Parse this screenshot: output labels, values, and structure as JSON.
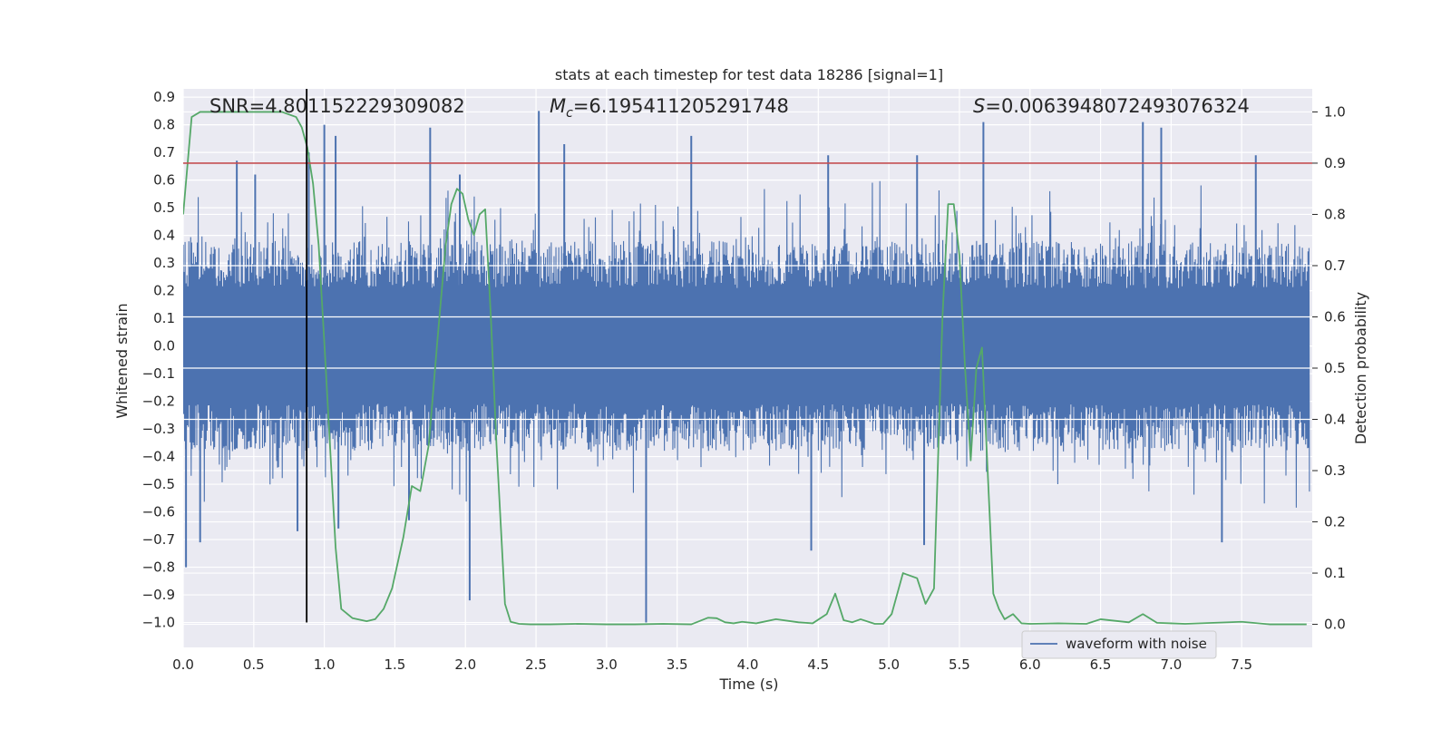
{
  "chart_data": {
    "type": "line",
    "title": "stats at each timestep for test data 18286 [signal=1]",
    "xlabel": "Time (s)",
    "ylabel": "Whitened strain",
    "y2label": "Detection probability",
    "xlim": [
      0.0,
      8.0
    ],
    "ylim": [
      -1.09,
      0.93
    ],
    "y2lim": [
      -0.045,
      1.045
    ],
    "xticks": [
      "0.0",
      "0.5",
      "1.0",
      "1.5",
      "2.0",
      "2.5",
      "3.0",
      "3.5",
      "4.0",
      "4.5",
      "5.0",
      "5.5",
      "6.0",
      "6.5",
      "7.0",
      "7.5"
    ],
    "yticks": [
      "0.9",
      "0.8",
      "0.7",
      "0.6",
      "0.5",
      "0.4",
      "0.3",
      "0.2",
      "0.1",
      "0.0",
      "−0.1",
      "−0.2",
      "−0.3",
      "−0.4",
      "−0.5",
      "−0.6",
      "−0.7",
      "−0.8",
      "−0.9",
      "−1.0"
    ],
    "y2ticks": [
      "1.0",
      "0.9",
      "0.8",
      "0.7",
      "0.6",
      "0.5",
      "0.4",
      "0.3",
      "0.2",
      "0.1",
      "0.0"
    ],
    "annotations": {
      "snr": "SNR=4.801152229309082",
      "mc_symbol": "M",
      "mc_sub": "c",
      "mc_value": "=6.195411205291748",
      "s_symbol": "S",
      "s_value": "=0.0063948072493076324"
    },
    "threshold": {
      "axis": "right",
      "value": 0.9,
      "color": "#c44e52"
    },
    "marker_line": {
      "x": 0.875,
      "y_from": -1.0,
      "y_to": 0.93,
      "color": "#000000"
    },
    "legend": {
      "position": "lower-right",
      "entries": [
        "waveform with noise"
      ]
    },
    "series": [
      {
        "name": "waveform with noise",
        "axis": "left",
        "color": "#4c72b0",
        "sample_count": 2400,
        "base_envelope": 0.38,
        "spikes": [
          {
            "x": 0.02,
            "y": -0.8
          },
          {
            "x": 0.12,
            "y": -0.71
          },
          {
            "x": 0.38,
            "y": 0.67
          },
          {
            "x": 0.51,
            "y": 0.62
          },
          {
            "x": 0.81,
            "y": -0.67
          },
          {
            "x": 0.89,
            "y": 0.7
          },
          {
            "x": 1.0,
            "y": 0.8
          },
          {
            "x": 1.08,
            "y": 0.76
          },
          {
            "x": 1.1,
            "y": -0.66
          },
          {
            "x": 1.6,
            "y": -0.63
          },
          {
            "x": 1.75,
            "y": 0.79
          },
          {
            "x": 1.96,
            "y": 0.62
          },
          {
            "x": 2.03,
            "y": -0.92
          },
          {
            "x": 2.52,
            "y": 0.85
          },
          {
            "x": 2.7,
            "y": 0.73
          },
          {
            "x": 3.28,
            "y": -1.0
          },
          {
            "x": 3.6,
            "y": 0.76
          },
          {
            "x": 4.45,
            "y": -0.74
          },
          {
            "x": 4.57,
            "y": 0.69
          },
          {
            "x": 5.2,
            "y": 0.69
          },
          {
            "x": 5.25,
            "y": -0.72
          },
          {
            "x": 5.67,
            "y": 0.81
          },
          {
            "x": 6.8,
            "y": 0.81
          },
          {
            "x": 6.93,
            "y": 0.79
          },
          {
            "x": 7.36,
            "y": -0.71
          },
          {
            "x": 7.6,
            "y": 0.69
          }
        ]
      },
      {
        "name": "detection probability",
        "axis": "right",
        "color": "#55a868",
        "x": [
          0.0,
          0.06,
          0.12,
          0.2,
          0.3,
          0.4,
          0.5,
          0.6,
          0.7,
          0.8,
          0.84,
          0.88,
          0.92,
          0.96,
          1.0,
          1.04,
          1.08,
          1.12,
          1.2,
          1.3,
          1.36,
          1.42,
          1.48,
          1.56,
          1.62,
          1.68,
          1.74,
          1.8,
          1.86,
          1.9,
          1.94,
          1.98,
          2.02,
          2.06,
          2.1,
          2.14,
          2.18,
          2.22,
          2.28,
          2.32,
          2.38,
          2.46,
          2.6,
          2.8,
          3.0,
          3.2,
          3.4,
          3.6,
          3.72,
          3.78,
          3.84,
          3.9,
          3.96,
          4.06,
          4.2,
          4.36,
          4.46,
          4.56,
          4.62,
          4.68,
          4.74,
          4.8,
          4.9,
          4.96,
          5.02,
          5.1,
          5.2,
          5.26,
          5.32,
          5.38,
          5.42,
          5.46,
          5.5,
          5.54,
          5.58,
          5.62,
          5.66,
          5.7,
          5.74,
          5.78,
          5.82,
          5.88,
          5.94,
          6.0,
          6.2,
          6.4,
          6.5,
          6.7,
          6.8,
          6.9,
          7.0,
          7.1,
          7.5,
          7.7,
          7.8,
          7.96
        ],
        "y": [
          0.8,
          0.99,
          1.0,
          1.0,
          1.0,
          1.0,
          1.0,
          1.0,
          1.0,
          0.99,
          0.97,
          0.93,
          0.86,
          0.74,
          0.55,
          0.35,
          0.15,
          0.03,
          0.012,
          0.006,
          0.01,
          0.03,
          0.07,
          0.17,
          0.27,
          0.26,
          0.35,
          0.55,
          0.74,
          0.82,
          0.85,
          0.84,
          0.79,
          0.76,
          0.8,
          0.81,
          0.6,
          0.35,
          0.04,
          0.005,
          0.001,
          0.0,
          0.0,
          0.001,
          0.0,
          0.0,
          0.001,
          0.0,
          0.013,
          0.012,
          0.004,
          0.002,
          0.005,
          0.002,
          0.01,
          0.004,
          0.002,
          0.02,
          0.06,
          0.008,
          0.004,
          0.01,
          0.001,
          0.001,
          0.02,
          0.1,
          0.09,
          0.04,
          0.07,
          0.6,
          0.82,
          0.82,
          0.72,
          0.5,
          0.32,
          0.5,
          0.54,
          0.3,
          0.06,
          0.03,
          0.01,
          0.02,
          0.002,
          0.001,
          0.002,
          0.001,
          0.01,
          0.004,
          0.02,
          0.003,
          0.002,
          0.001,
          0.005,
          0.0,
          0.0,
          0.0
        ]
      }
    ]
  }
}
